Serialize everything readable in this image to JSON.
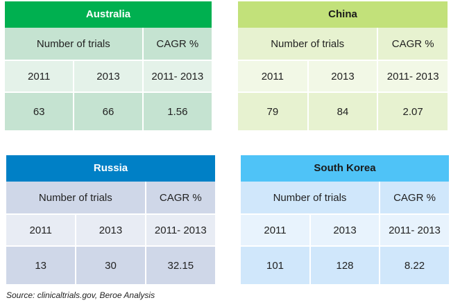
{
  "cards": {
    "australia": {
      "title": "Australia",
      "trials_label": "Number of trials",
      "cagr_label": "CAGR %",
      "year1": "2011",
      "year2": "2013",
      "period": "2011- 2013",
      "value1": "63",
      "value2": "66",
      "cagr": "1.56"
    },
    "china": {
      "title": "China",
      "trials_label": "Number of trials",
      "cagr_label": "CAGR %",
      "year1": "2011",
      "year2": "2013",
      "period": "2011- 2013",
      "value1": "79",
      "value2": "84",
      "cagr": "2.07"
    },
    "russia": {
      "title": "Russia",
      "trials_label": "Number of trials",
      "cagr_label": "CAGR %",
      "year1": "2011",
      "year2": "2013",
      "period": "2011- 2013",
      "value1": "13",
      "value2": "30",
      "cagr": "32.15"
    },
    "south_korea": {
      "title": "South Korea",
      "trials_label": "Number of trials",
      "cagr_label": "CAGR %",
      "year1": "2011",
      "year2": "2013",
      "period": "2011- 2013",
      "value1": "101",
      "value2": "128",
      "cagr": "8.22"
    }
  },
  "colors": {
    "australia_header": "#00b050",
    "china_header": "#c2e17a",
    "russia_header": "#0080c6",
    "south_korea_header": "#4fc3f7"
  },
  "source": "Source: clinicaltrials.gov,  Beroe Analysis"
}
